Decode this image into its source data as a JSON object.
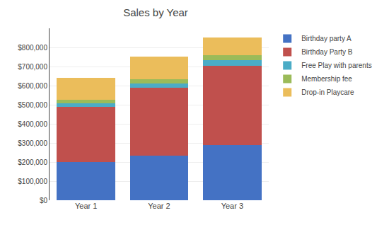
{
  "chart_data": {
    "type": "bar",
    "title": "Sales by Year",
    "categories": [
      "Year 1",
      "Year 2",
      "Year 3"
    ],
    "series": [
      {
        "name": "Birthday party A",
        "color": "#4472C4",
        "values": [
          200000,
          235000,
          290000
        ]
      },
      {
        "name": "Birthday Party B",
        "color": "#C0504D",
        "values": [
          290000,
          355000,
          415000
        ]
      },
      {
        "name": "Free Play with parents",
        "color": "#4BACC6",
        "values": [
          18000,
          22000,
          27000
        ]
      },
      {
        "name": "Membership fee",
        "color": "#9BBB59",
        "values": [
          17000,
          21000,
          26000
        ]
      },
      {
        "name": "Drop-in Playcare",
        "color": "#EBBD5B",
        "values": [
          115000,
          120000,
          95000
        ]
      }
    ],
    "stacked": true,
    "ylim": [
      0,
      900000
    ],
    "yticks": [
      {
        "value": 0,
        "label": "$0"
      },
      {
        "value": 100000,
        "label": "$100,000"
      },
      {
        "value": 200000,
        "label": "$200,000"
      },
      {
        "value": 300000,
        "label": "$300,000"
      },
      {
        "value": 400000,
        "label": "$400,000"
      },
      {
        "value": 500000,
        "label": "$500,000"
      },
      {
        "value": 600000,
        "label": "$600,000"
      },
      {
        "value": 700000,
        "label": "$700,000"
      },
      {
        "value": 800000,
        "label": "$800,000"
      }
    ],
    "grid": true,
    "legend": "right"
  }
}
